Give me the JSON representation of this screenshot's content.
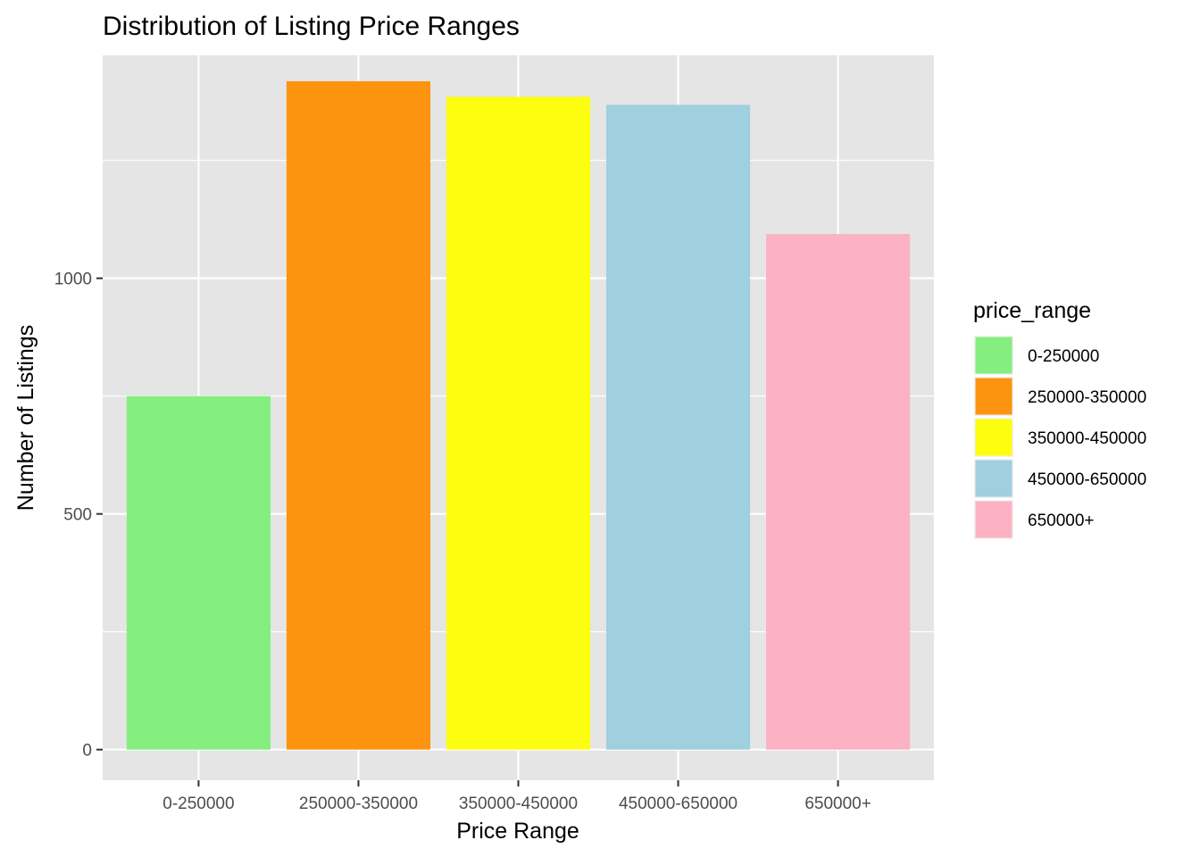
{
  "chart_data": {
    "type": "bar",
    "title": "Distribution of Listing Price Ranges",
    "xlabel": "Price Range",
    "ylabel": "Number of Listings",
    "categories": [
      "0-250000",
      "250000-350000",
      "350000-450000",
      "450000-650000",
      "650000+"
    ],
    "values": [
      750,
      1418,
      1385,
      1368,
      1094
    ],
    "colors": [
      "#84ee7e",
      "#fd940f",
      "#fdfd0f",
      "#a0cfdf",
      "#fdb2c3"
    ],
    "ylim": [
      -65,
      1473
    ],
    "y_ticks": [
      0,
      500,
      1000
    ],
    "y_tick_labels": [
      "0",
      "500",
      "1000"
    ],
    "grid": true,
    "panel_background": "#e5e5e5",
    "legend": {
      "title": "price_range",
      "position": "right",
      "entries": [
        "0-250000",
        "250000-350000",
        "350000-450000",
        "450000-650000",
        "650000+"
      ]
    }
  }
}
